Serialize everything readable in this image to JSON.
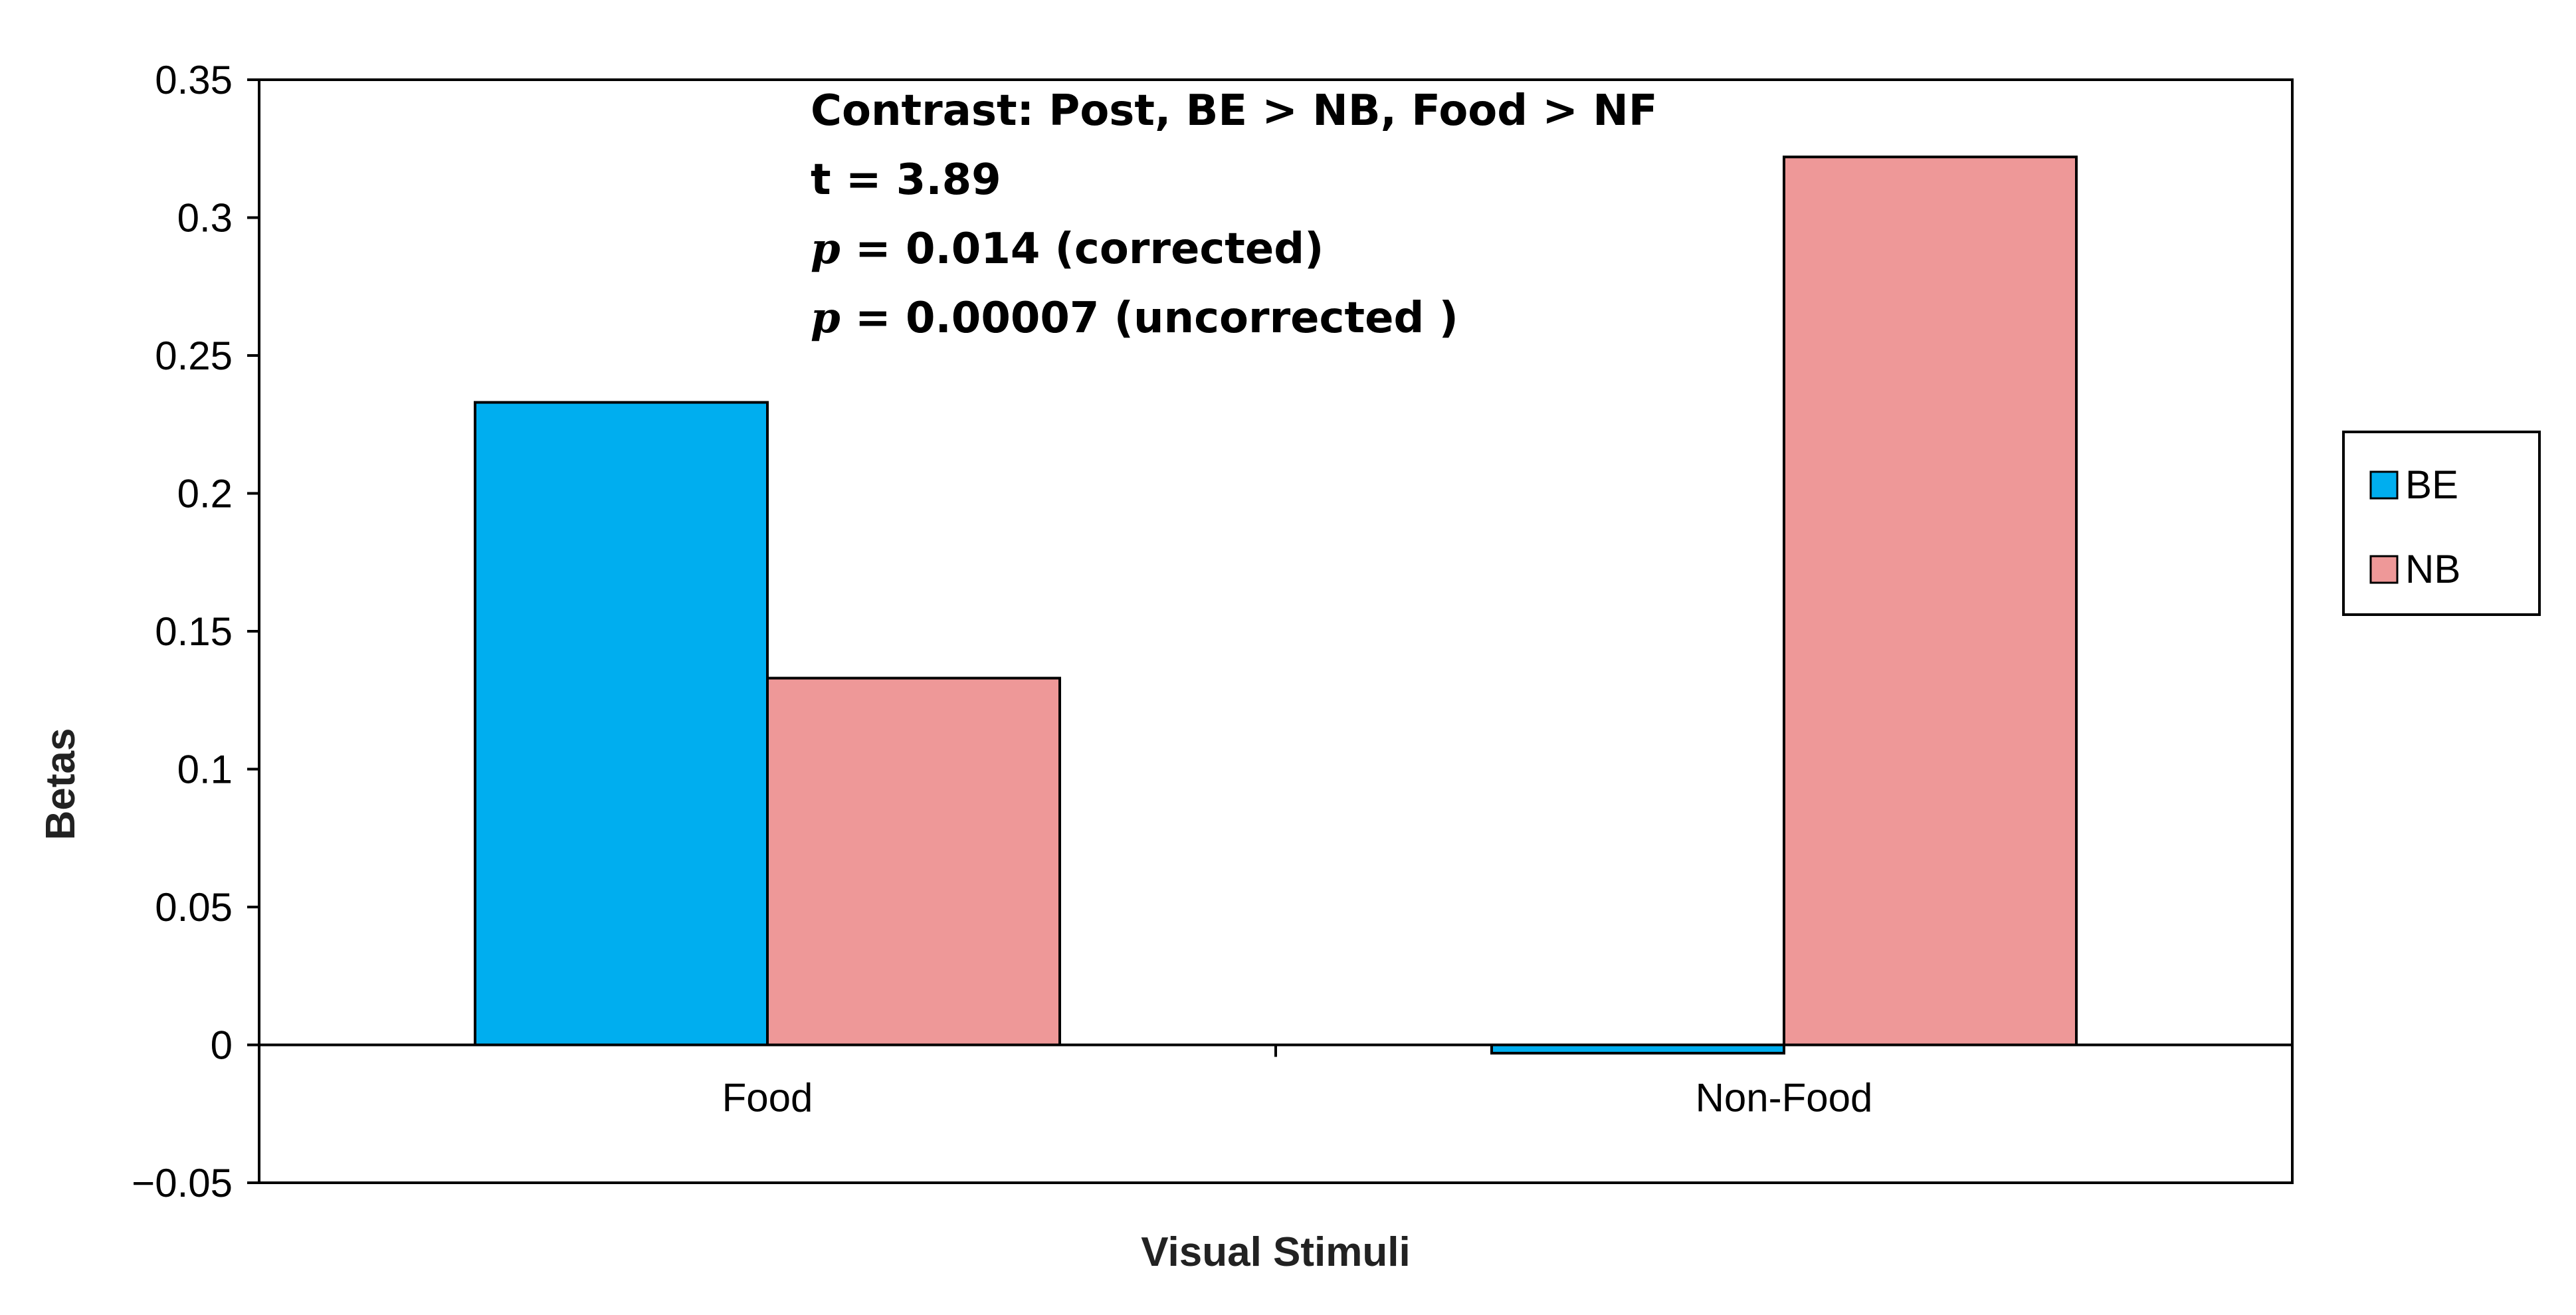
{
  "chart_data": {
    "type": "bar",
    "categories": [
      "Food",
      "Non-Food"
    ],
    "series": [
      {
        "name": "BE",
        "values": [
          0.233,
          -0.003
        ],
        "color": "#00aeef"
      },
      {
        "name": "NB",
        "values": [
          0.133,
          0.322
        ],
        "color": "#ee9898"
      }
    ],
    "ylim": [
      -0.05,
      0.35
    ],
    "yticks": [
      "0.35",
      "0.3",
      "0.25",
      "0.2",
      "0.15",
      "0.1",
      "0.05",
      "0",
      "−0.05"
    ],
    "ytick_values": [
      0.35,
      0.3,
      0.25,
      0.2,
      0.15,
      0.1,
      0.05,
      0,
      -0.05
    ],
    "xlabel": "Visual Stimuli",
    "ylabel": "Betas",
    "legend_position": "right",
    "grid": false
  },
  "annotation": {
    "line1": "Contrast: Post, BE > NB, Food > NF",
    "line2": "t = 3.89",
    "p_symbol": "p",
    "line3_rest": " = 0.014 (corrected)",
    "line4_rest": " = 0.00007 (uncorrected )"
  }
}
